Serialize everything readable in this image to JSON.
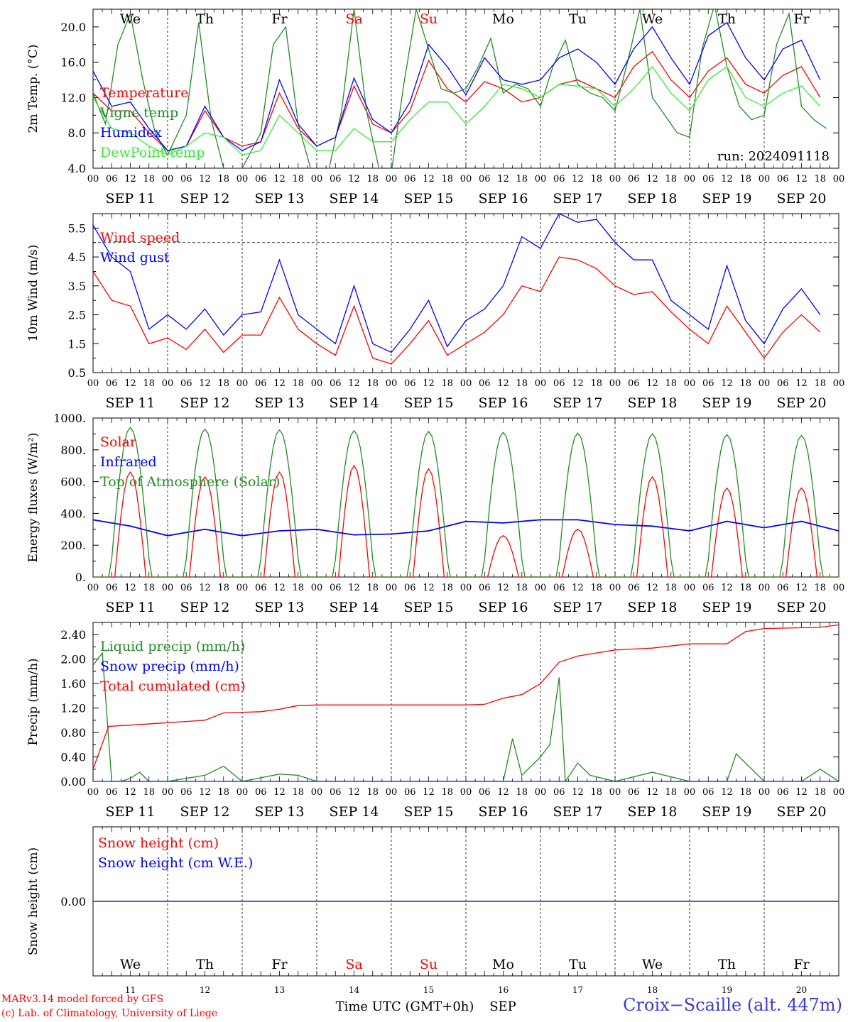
{
  "days": [
    {
      "abbr": "We",
      "day": "11",
      "date": "SEP 11",
      "weekend": false
    },
    {
      "abbr": "Th",
      "day": "12",
      "date": "SEP 12",
      "weekend": false
    },
    {
      "abbr": "Fr",
      "day": "13",
      "date": "SEP 13",
      "weekend": false
    },
    {
      "abbr": "Sa",
      "day": "14",
      "date": "SEP 14",
      "weekend": true
    },
    {
      "abbr": "Su",
      "day": "15",
      "date": "SEP 15",
      "weekend": true
    },
    {
      "abbr": "Mo",
      "day": "16",
      "date": "SEP 16",
      "weekend": false
    },
    {
      "abbr": "Tu",
      "day": "17",
      "date": "SEP 17",
      "weekend": false
    },
    {
      "abbr": "We",
      "day": "18",
      "date": "SEP 18",
      "weekend": false
    },
    {
      "abbr": "Th",
      "day": "19",
      "date": "SEP 19",
      "weekend": false
    },
    {
      "abbr": "Fr",
      "day": "20",
      "date": "SEP 20",
      "weekend": false
    }
  ],
  "hour_labels": [
    "00",
    "06",
    "12",
    "18"
  ],
  "colors": {
    "weekday": "#000000",
    "weekend": "#ff0000",
    "red": "#ff0000",
    "green": "#228b22",
    "blue": "#0000ff",
    "lightgreen": "#33ee33",
    "purple": "#7030a0"
  },
  "chart_data": [
    {
      "type": "line",
      "ylabel": "2m Temp. (°C)",
      "ylim": [
        4.0,
        22.0
      ],
      "yticks": [
        "4.0",
        "8.0",
        "12.0",
        "16.0",
        "20.0"
      ],
      "ytick_values": [
        4,
        8,
        12,
        16,
        20
      ],
      "annotation": "run: 2024091118",
      "show_day_abbr": true,
      "x_unit": "hours since SEP 11 00 UTC",
      "series": [
        {
          "name": "Temperature",
          "color": "red",
          "x": [
            0,
            6,
            12,
            18,
            24,
            30,
            36,
            42,
            48,
            54,
            60,
            66,
            72,
            78,
            84,
            90,
            96,
            102,
            108,
            114,
            120,
            126,
            132,
            138,
            144,
            150,
            156,
            162,
            168,
            174,
            180,
            186,
            192,
            198,
            204,
            210,
            216,
            222,
            228,
            234
          ],
          "y": [
            12.5,
            10.5,
            10.5,
            8.0,
            6.0,
            6.5,
            10.5,
            7.5,
            6.5,
            7.0,
            12.5,
            8.5,
            6.5,
            7.5,
            13.3,
            9.0,
            8.0,
            10.5,
            16.2,
            13.0,
            11.5,
            13.8,
            13.0,
            11.5,
            12.0,
            13.5,
            14.0,
            13.0,
            12.0,
            15.5,
            17.2,
            14.0,
            12.0,
            15.0,
            16.5,
            13.5,
            12.5,
            14.5,
            15.5,
            12.0
          ]
        },
        {
          "name": "Vigne temp",
          "color": "green",
          "x": [
            0,
            4,
            8,
            12,
            16,
            20,
            24,
            30,
            34,
            38,
            42,
            46,
            48,
            54,
            58,
            62,
            66,
            70,
            72,
            76,
            80,
            84,
            88,
            92,
            96,
            100,
            104,
            108,
            112,
            116,
            120,
            124,
            128,
            132,
            136,
            140,
            144,
            148,
            152,
            156,
            160,
            164,
            168,
            172,
            176,
            180,
            184,
            188,
            192,
            196,
            200,
            204,
            208,
            212,
            216,
            220,
            224,
            228,
            232,
            236
          ],
          "y": [
            12.5,
            9.0,
            18.0,
            21.5,
            14.0,
            8.0,
            5.5,
            10.0,
            20.5,
            9.5,
            4.0,
            4.0,
            4.0,
            8.0,
            18.0,
            20.0,
            9.0,
            4.0,
            3.5,
            4.0,
            10.5,
            22.0,
            10.5,
            4.0,
            3.5,
            13.5,
            22.0,
            17.5,
            13.0,
            12.5,
            13.0,
            15.5,
            18.7,
            12.5,
            13.5,
            13.0,
            11.0,
            15.5,
            18.5,
            13.5,
            12.5,
            12.0,
            10.5,
            16.0,
            22.0,
            12.0,
            10.0,
            8.0,
            7.5,
            17.5,
            22.5,
            15.5,
            11.0,
            9.5,
            10.0,
            18.0,
            21.5,
            11.0,
            9.5,
            8.5
          ]
        },
        {
          "name": "Humidex",
          "color": "blue",
          "x": [
            0,
            6,
            12,
            18,
            24,
            30,
            36,
            42,
            48,
            54,
            60,
            66,
            72,
            78,
            84,
            90,
            96,
            102,
            108,
            114,
            120,
            126,
            132,
            138,
            144,
            150,
            156,
            162,
            168,
            174,
            180,
            186,
            192,
            198,
            204,
            210,
            216,
            222,
            228,
            234
          ],
          "y": [
            15.0,
            11.0,
            11.5,
            8.5,
            6.0,
            6.5,
            11.0,
            7.5,
            6.0,
            7.0,
            14.0,
            9.0,
            6.5,
            7.5,
            14.2,
            9.5,
            8.0,
            11.5,
            18.0,
            15.5,
            12.3,
            16.5,
            14.0,
            13.5,
            14.0,
            16.5,
            17.5,
            16.0,
            13.5,
            17.5,
            20.0,
            16.5,
            13.5,
            19.0,
            20.5,
            16.5,
            14.0,
            17.5,
            18.5,
            14.0
          ]
        },
        {
          "name": "DewPoint temp",
          "color": "lightgreen",
          "x": [
            0,
            6,
            12,
            18,
            24,
            30,
            36,
            42,
            48,
            54,
            60,
            66,
            72,
            78,
            84,
            90,
            96,
            102,
            108,
            114,
            120,
            126,
            132,
            138,
            144,
            150,
            156,
            162,
            168,
            174,
            180,
            186,
            192,
            198,
            204,
            210,
            216,
            222,
            228,
            234
          ],
          "y": [
            12.0,
            8.5,
            8.0,
            6.5,
            5.5,
            6.5,
            8.0,
            7.5,
            5.5,
            6.0,
            10.0,
            8.0,
            6.0,
            6.0,
            8.5,
            7.0,
            7.0,
            9.5,
            11.5,
            11.5,
            9.0,
            11.0,
            13.5,
            13.0,
            12.0,
            13.5,
            13.3,
            13.0,
            11.0,
            13.0,
            15.5,
            12.5,
            10.5,
            14.0,
            15.5,
            12.0,
            11.0,
            12.5,
            13.3,
            11.0
          ]
        }
      ]
    },
    {
      "type": "line",
      "ylabel": "10m Wind (m/s)",
      "ylim": [
        0.5,
        6.0
      ],
      "yticks": [
        "0.5",
        "1.5",
        "2.5",
        "3.5",
        "4.5",
        "5.5"
      ],
      "ytick_values": [
        0.5,
        1.5,
        2.5,
        3.5,
        4.5,
        5.5
      ],
      "threshold": 5.0,
      "x_unit": "hours since SEP 11 00 UTC",
      "series": [
        {
          "name": "Wind speed",
          "color": "red",
          "x": [
            0,
            6,
            12,
            18,
            24,
            30,
            36,
            42,
            48,
            54,
            60,
            66,
            72,
            78,
            84,
            90,
            96,
            102,
            108,
            114,
            120,
            126,
            132,
            138,
            144,
            150,
            156,
            162,
            168,
            174,
            180,
            186,
            192,
            198,
            204,
            210,
            216,
            222,
            228,
            234
          ],
          "y": [
            4.0,
            3.0,
            2.8,
            1.5,
            1.7,
            1.3,
            2.0,
            1.2,
            1.8,
            1.8,
            3.1,
            2.0,
            1.5,
            1.1,
            2.8,
            1.0,
            0.8,
            1.5,
            2.3,
            1.1,
            1.5,
            1.9,
            2.5,
            3.5,
            3.3,
            4.5,
            4.4,
            4.1,
            3.5,
            3.2,
            3.3,
            2.6,
            2.0,
            1.5,
            2.8,
            1.9,
            1.0,
            1.9,
            2.5,
            1.9
          ]
        },
        {
          "name": "Wind gust",
          "color": "blue",
          "x": [
            0,
            6,
            12,
            18,
            24,
            30,
            36,
            42,
            48,
            54,
            60,
            66,
            72,
            78,
            84,
            90,
            96,
            102,
            108,
            114,
            120,
            126,
            132,
            138,
            144,
            150,
            156,
            162,
            168,
            174,
            180,
            186,
            192,
            198,
            204,
            210,
            216,
            222,
            228,
            234
          ],
          "y": [
            5.6,
            4.5,
            4.0,
            2.0,
            2.5,
            2.0,
            2.7,
            1.8,
            2.5,
            2.6,
            4.4,
            2.5,
            2.0,
            1.5,
            3.5,
            1.5,
            1.2,
            2.0,
            3.0,
            1.4,
            2.3,
            2.7,
            3.5,
            5.2,
            4.8,
            6.0,
            5.7,
            5.8,
            5.0,
            4.4,
            4.4,
            3.0,
            2.5,
            2.0,
            4.2,
            2.3,
            1.5,
            2.7,
            3.4,
            2.5
          ]
        }
      ]
    },
    {
      "type": "line",
      "ylabel": "Energy fluxes (W/m²)",
      "ylim": [
        0,
        1000
      ],
      "yticks": [
        "0.",
        "200.",
        "400.",
        "600.",
        "800.",
        "1000."
      ],
      "ytick_values": [
        0,
        200,
        400,
        600,
        800,
        1000
      ],
      "x_unit": "hours since SEP 11 00 UTC",
      "solar_peaks": [
        660,
        630,
        660,
        700,
        680,
        260,
        300,
        630,
        560,
        560
      ],
      "toa_peaks": [
        940,
        930,
        925,
        920,
        915,
        910,
        905,
        900,
        895,
        890
      ],
      "series": [
        {
          "name": "Solar",
          "color": "red",
          "daily_peak": "solar_peaks"
        },
        {
          "name": "Infrared",
          "color": "blue",
          "x": [
            0,
            12,
            24,
            36,
            48,
            60,
            72,
            84,
            96,
            108,
            120,
            132,
            144,
            156,
            168,
            180,
            192,
            204,
            216,
            228,
            240
          ],
          "y": [
            360,
            320,
            260,
            300,
            260,
            290,
            300,
            265,
            270,
            290,
            350,
            340,
            360,
            360,
            330,
            320,
            290,
            350,
            310,
            350,
            290
          ]
        },
        {
          "name": "Top of Atmosphere (Solar)",
          "color": "green",
          "daily_peak": "toa_peaks"
        }
      ]
    },
    {
      "type": "line",
      "ylabel": "Precip (mm/h)",
      "ylim": [
        0,
        2.6
      ],
      "yticks": [
        "0.00",
        "0.40",
        "0.80",
        "1.20",
        "1.60",
        "2.00",
        "2.40"
      ],
      "ytick_values": [
        0,
        0.4,
        0.8,
        1.2,
        1.6,
        2.0,
        2.4
      ],
      "x_unit": "hours since SEP 11 00 UTC",
      "series": [
        {
          "name": "Liquid precip (mm/h)",
          "color": "green",
          "x": [
            0,
            3,
            6,
            9,
            12,
            15,
            18,
            24,
            36,
            42,
            48,
            60,
            66,
            72,
            108,
            120,
            132,
            135,
            138,
            144,
            147,
            150,
            152,
            156,
            160,
            168,
            180,
            192,
            204,
            207,
            210,
            216,
            228,
            234,
            240
          ],
          "y": [
            1.9,
            2.1,
            0.0,
            0.0,
            0.05,
            0.15,
            0.0,
            0.0,
            0.1,
            0.25,
            0.0,
            0.12,
            0.1,
            0.0,
            0.0,
            0.0,
            0.0,
            0.7,
            0.1,
            0.4,
            0.6,
            1.7,
            0.0,
            0.3,
            0.1,
            0.0,
            0.15,
            0.0,
            0.0,
            0.45,
            0.3,
            0.0,
            0.0,
            0.2,
            0.0
          ]
        },
        {
          "name": "Snow precip (mm/h)",
          "color": "blue",
          "x": [
            0,
            240
          ],
          "y": [
            0.0,
            0.0
          ]
        },
        {
          "name": "Total cumulated (cm)",
          "color": "red",
          "x": [
            0,
            5,
            12,
            24,
            36,
            42,
            54,
            60,
            66,
            72,
            120,
            126,
            132,
            138,
            144,
            150,
            156,
            168,
            180,
            192,
            204,
            210,
            216,
            234,
            240
          ],
          "y": [
            0.2,
            0.9,
            0.92,
            0.96,
            1.0,
            1.12,
            1.14,
            1.18,
            1.24,
            1.25,
            1.25,
            1.26,
            1.36,
            1.42,
            1.6,
            1.95,
            2.05,
            2.15,
            2.18,
            2.25,
            2.25,
            2.45,
            2.5,
            2.52,
            2.56
          ]
        }
      ]
    },
    {
      "type": "line",
      "ylabel": "Snow height (cm)",
      "ylim": [
        -1,
        1
      ],
      "yticks": [
        "0.00"
      ],
      "ytick_values": [
        0
      ],
      "show_bottom_day_abbr": true,
      "x_unit": "hours since SEP 11 00 UTC",
      "series": [
        {
          "name": "Snow height (cm)",
          "color": "red",
          "x": [
            0,
            240
          ],
          "y": [
            0,
            0
          ]
        },
        {
          "name": "Snow height (cm W.E.)",
          "color": "blue",
          "x": [
            0,
            240
          ],
          "y": [
            0,
            0
          ]
        }
      ]
    }
  ],
  "xlabel": "Time UTC (GMT+0h)",
  "month": "SEP",
  "credits": [
    "MARv3.14 model forced by GFS",
    "(c) Lab. of Climatology, University of Liege"
  ],
  "station": "Croix−Scaille (alt. 447m)"
}
